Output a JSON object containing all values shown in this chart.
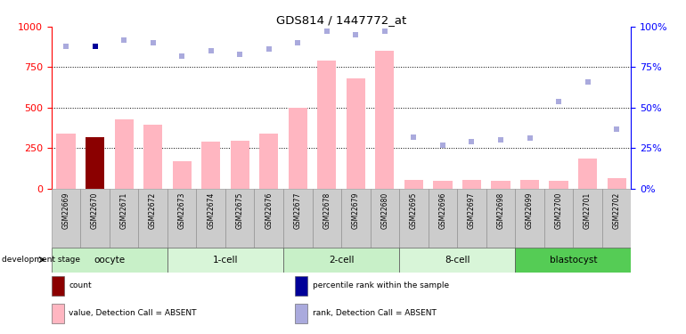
{
  "title": "GDS814 / 1447772_at",
  "samples": [
    "GSM22669",
    "GSM22670",
    "GSM22671",
    "GSM22672",
    "GSM22673",
    "GSM22674",
    "GSM22675",
    "GSM22676",
    "GSM22677",
    "GSM22678",
    "GSM22679",
    "GSM22680",
    "GSM22695",
    "GSM22696",
    "GSM22697",
    "GSM22698",
    "GSM22699",
    "GSM22700",
    "GSM22701",
    "GSM22702"
  ],
  "value_absent": [
    340,
    320,
    430,
    395,
    170,
    290,
    295,
    340,
    500,
    790,
    680,
    850,
    55,
    50,
    55,
    50,
    55,
    50,
    185,
    65
  ],
  "rank_absent": [
    88,
    null,
    92,
    90,
    82,
    85,
    83,
    86,
    90,
    97,
    95,
    97,
    32,
    27,
    29,
    30,
    31,
    54,
    66,
    37
  ],
  "percentile_rank": {
    "index": 1,
    "value": 88
  },
  "stages": [
    {
      "label": "oocyte",
      "start": 0,
      "end": 4,
      "color": "#c8f0c8"
    },
    {
      "label": "1-cell",
      "start": 4,
      "end": 8,
      "color": "#d8f5d8"
    },
    {
      "label": "2-cell",
      "start": 8,
      "end": 12,
      "color": "#c8f0c8"
    },
    {
      "label": "8-cell",
      "start": 12,
      "end": 16,
      "color": "#d8f5d8"
    },
    {
      "label": "blastocyst",
      "start": 16,
      "end": 20,
      "color": "#55cc55"
    }
  ],
  "ylim_left": [
    0,
    1000
  ],
  "ylim_right": [
    0,
    100
  ],
  "yticks_left": [
    0,
    250,
    500,
    750,
    1000
  ],
  "yticks_right": [
    0,
    25,
    50,
    75,
    100
  ],
  "bar_color_absent": "#FFB6C1",
  "bar_color_count": "#8B0000",
  "dot_color_rank": "#aaaadd",
  "dot_color_pct": "#000099",
  "legend_items": [
    {
      "label": "count",
      "color": "#8B0000"
    },
    {
      "label": "percentile rank within the sample",
      "color": "#000099"
    },
    {
      "label": "value, Detection Call = ABSENT",
      "color": "#FFB6C1"
    },
    {
      "label": "rank, Detection Call = ABSENT",
      "color": "#aaaadd"
    }
  ]
}
